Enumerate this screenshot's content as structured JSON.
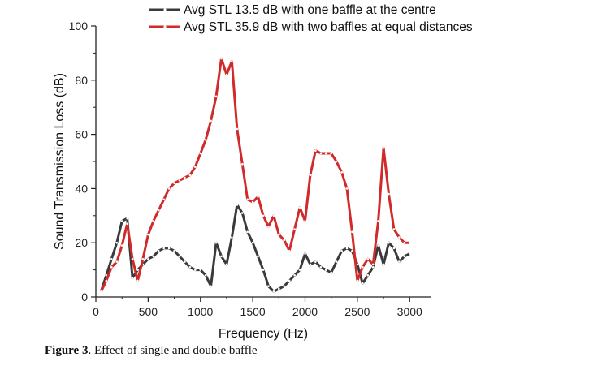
{
  "chart_data": {
    "type": "line",
    "xlabel": "Frequency (Hz)",
    "ylabel": "Sound Transmission Loss (dB)",
    "xlim": [
      0,
      3200
    ],
    "ylim": [
      0,
      100
    ],
    "x_ticks": [
      0,
      500,
      1000,
      1500,
      2000,
      2500,
      3000
    ],
    "y_ticks": [
      0,
      20,
      40,
      60,
      80,
      100
    ],
    "grid": false,
    "legend_position": "top",
    "series": [
      {
        "name": "Avg STL 13.5 dB with one baffle at the centre",
        "color": "#3a3a3a",
        "x": [
          50,
          100,
          150,
          200,
          250,
          300,
          350,
          400,
          450,
          500,
          550,
          600,
          650,
          700,
          750,
          800,
          850,
          900,
          950,
          1000,
          1050,
          1100,
          1150,
          1200,
          1250,
          1300,
          1350,
          1400,
          1450,
          1500,
          1550,
          1600,
          1650,
          1700,
          1750,
          1800,
          1850,
          1900,
          1950,
          2000,
          2050,
          2100,
          2150,
          2200,
          2250,
          2300,
          2350,
          2400,
          2450,
          2500,
          2550,
          2600,
          2650,
          2700,
          2750,
          2800,
          2850,
          2900,
          2950,
          3000
        ],
        "y": [
          2,
          8,
          14,
          20,
          28,
          29,
          7,
          10,
          12,
          14,
          15,
          17,
          18,
          18,
          17,
          15,
          13,
          11,
          10,
          10,
          8,
          4,
          20,
          15,
          12,
          22,
          34,
          31,
          24,
          20,
          15,
          10,
          4,
          2,
          3,
          4,
          6,
          8,
          10,
          16,
          12,
          13,
          11,
          10,
          9,
          13,
          17,
          18,
          17,
          12,
          5,
          8,
          11,
          19,
          12,
          20,
          18,
          13,
          15,
          16
        ]
      },
      {
        "name": "Avg STL 35.9 dB with two baffles at equal distances",
        "color": "#d02a2a",
        "x": [
          50,
          100,
          150,
          200,
          250,
          300,
          350,
          400,
          450,
          500,
          550,
          600,
          650,
          700,
          750,
          800,
          850,
          900,
          950,
          1000,
          1050,
          1100,
          1150,
          1200,
          1250,
          1300,
          1350,
          1400,
          1450,
          1500,
          1550,
          1600,
          1650,
          1700,
          1750,
          1800,
          1850,
          1900,
          1950,
          2000,
          2050,
          2100,
          2150,
          2200,
          2250,
          2300,
          2350,
          2400,
          2450,
          2500,
          2550,
          2600,
          2650,
          2700,
          2750,
          2800,
          2850,
          2900,
          2950,
          3000
        ],
        "y": [
          2,
          6,
          11,
          13,
          19,
          27,
          14,
          6,
          14,
          23,
          28,
          32,
          36,
          40,
          42,
          43,
          44,
          45,
          48,
          53,
          58,
          65,
          74,
          88,
          82,
          87,
          62,
          49,
          36,
          35,
          37,
          30,
          26,
          30,
          23,
          21,
          17,
          25,
          33,
          28,
          45,
          54,
          53,
          53,
          53,
          50,
          46,
          40,
          24,
          6,
          11,
          14,
          12,
          28,
          55,
          38,
          25,
          22,
          20,
          20
        ]
      }
    ]
  },
  "caption": {
    "label": "Figure 3",
    "text": ". Effect of single and double baffle"
  }
}
